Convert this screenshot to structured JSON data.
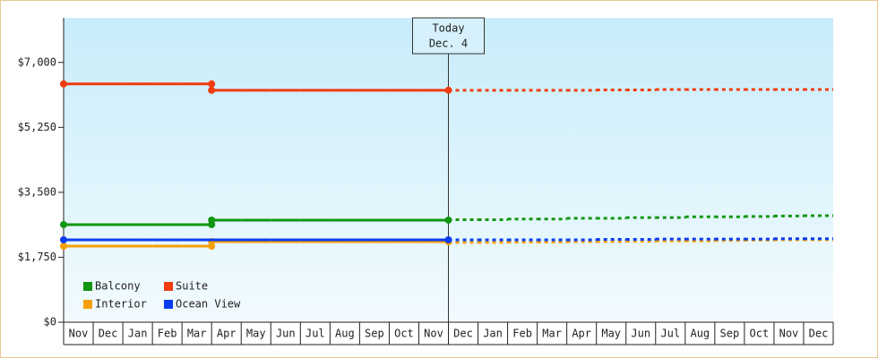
{
  "chart_data": {
    "type": "step",
    "annotation": [
      "Today",
      "Dec. 4"
    ],
    "categories": [
      "Nov",
      "Dec",
      "Jan",
      "Feb",
      "Mar",
      "Apr",
      "May",
      "Jun",
      "Jul",
      "Aug",
      "Sep",
      "Oct",
      "Nov",
      "Dec",
      "Jan",
      "Feb",
      "Mar",
      "Apr",
      "May",
      "Jun",
      "Jul",
      "Aug",
      "Sep",
      "Oct",
      "Nov",
      "Dec"
    ],
    "ylim": [
      0,
      8200
    ],
    "yticks": [
      0,
      {
        "value": 1750,
        "label": "$1,750"
      },
      {
        "value": 3500,
        "label": "$3,500"
      },
      {
        "value": 5250,
        "label": "$5,250"
      },
      {
        "value": 7000,
        "label": "$7,000"
      }
    ],
    "zero_label": "$0",
    "series": [
      {
        "name": "Balcony",
        "color": "#129612",
        "values": [
          2630,
          2630,
          2630,
          2630,
          2630,
          2750,
          2750,
          2750,
          2750,
          2750,
          2750,
          2750,
          2750,
          null,
          null,
          null,
          null,
          null,
          null,
          null,
          null,
          null,
          null,
          null,
          null,
          null
        ],
        "forecast": [
          null,
          null,
          null,
          null,
          null,
          null,
          null,
          null,
          null,
          null,
          null,
          null,
          null,
          2760,
          2760,
          2780,
          2780,
          2800,
          2800,
          2820,
          2820,
          2840,
          2840,
          2850,
          2860,
          2870
        ]
      },
      {
        "name": "Suite",
        "color": "#f03c0f",
        "values": [
          6420,
          6420,
          6420,
          6420,
          6420,
          6250,
          6250,
          6250,
          6250,
          6250,
          6250,
          6250,
          6250,
          null,
          null,
          null,
          null,
          null,
          null,
          null,
          null,
          null,
          null,
          null,
          null,
          null
        ],
        "forecast": [
          null,
          null,
          null,
          null,
          null,
          null,
          null,
          null,
          null,
          null,
          null,
          null,
          null,
          6250,
          6250,
          6250,
          6250,
          6250,
          6260,
          6260,
          6270,
          6270,
          6270,
          6270,
          6270,
          6270
        ]
      },
      {
        "name": "Interior",
        "color": "#f5a00a",
        "values": [
          2050,
          2050,
          2050,
          2050,
          2050,
          2170,
          2170,
          2170,
          2170,
          2170,
          2170,
          2170,
          2170,
          null,
          null,
          null,
          null,
          null,
          null,
          null,
          null,
          null,
          null,
          null,
          null,
          null
        ],
        "forecast": [
          null,
          null,
          null,
          null,
          null,
          null,
          null,
          null,
          null,
          null,
          null,
          null,
          null,
          2150,
          2150,
          2160,
          2160,
          2170,
          2170,
          2180,
          2190,
          2190,
          2200,
          2210,
          2220,
          2220
        ]
      },
      {
        "name": "Ocean View",
        "color": "#0a3cf0",
        "values": [
          2220,
          2220,
          2220,
          2220,
          2220,
          2220,
          2220,
          2220,
          2220,
          2220,
          2220,
          2220,
          2220,
          null,
          null,
          null,
          null,
          null,
          null,
          null,
          null,
          null,
          null,
          null,
          null,
          null
        ],
        "forecast": [
          null,
          null,
          null,
          null,
          null,
          null,
          null,
          null,
          null,
          null,
          null,
          null,
          null,
          2220,
          2220,
          2220,
          2220,
          2220,
          2230,
          2230,
          2240,
          2240,
          2240,
          2240,
          2250,
          2250
        ]
      }
    ]
  }
}
